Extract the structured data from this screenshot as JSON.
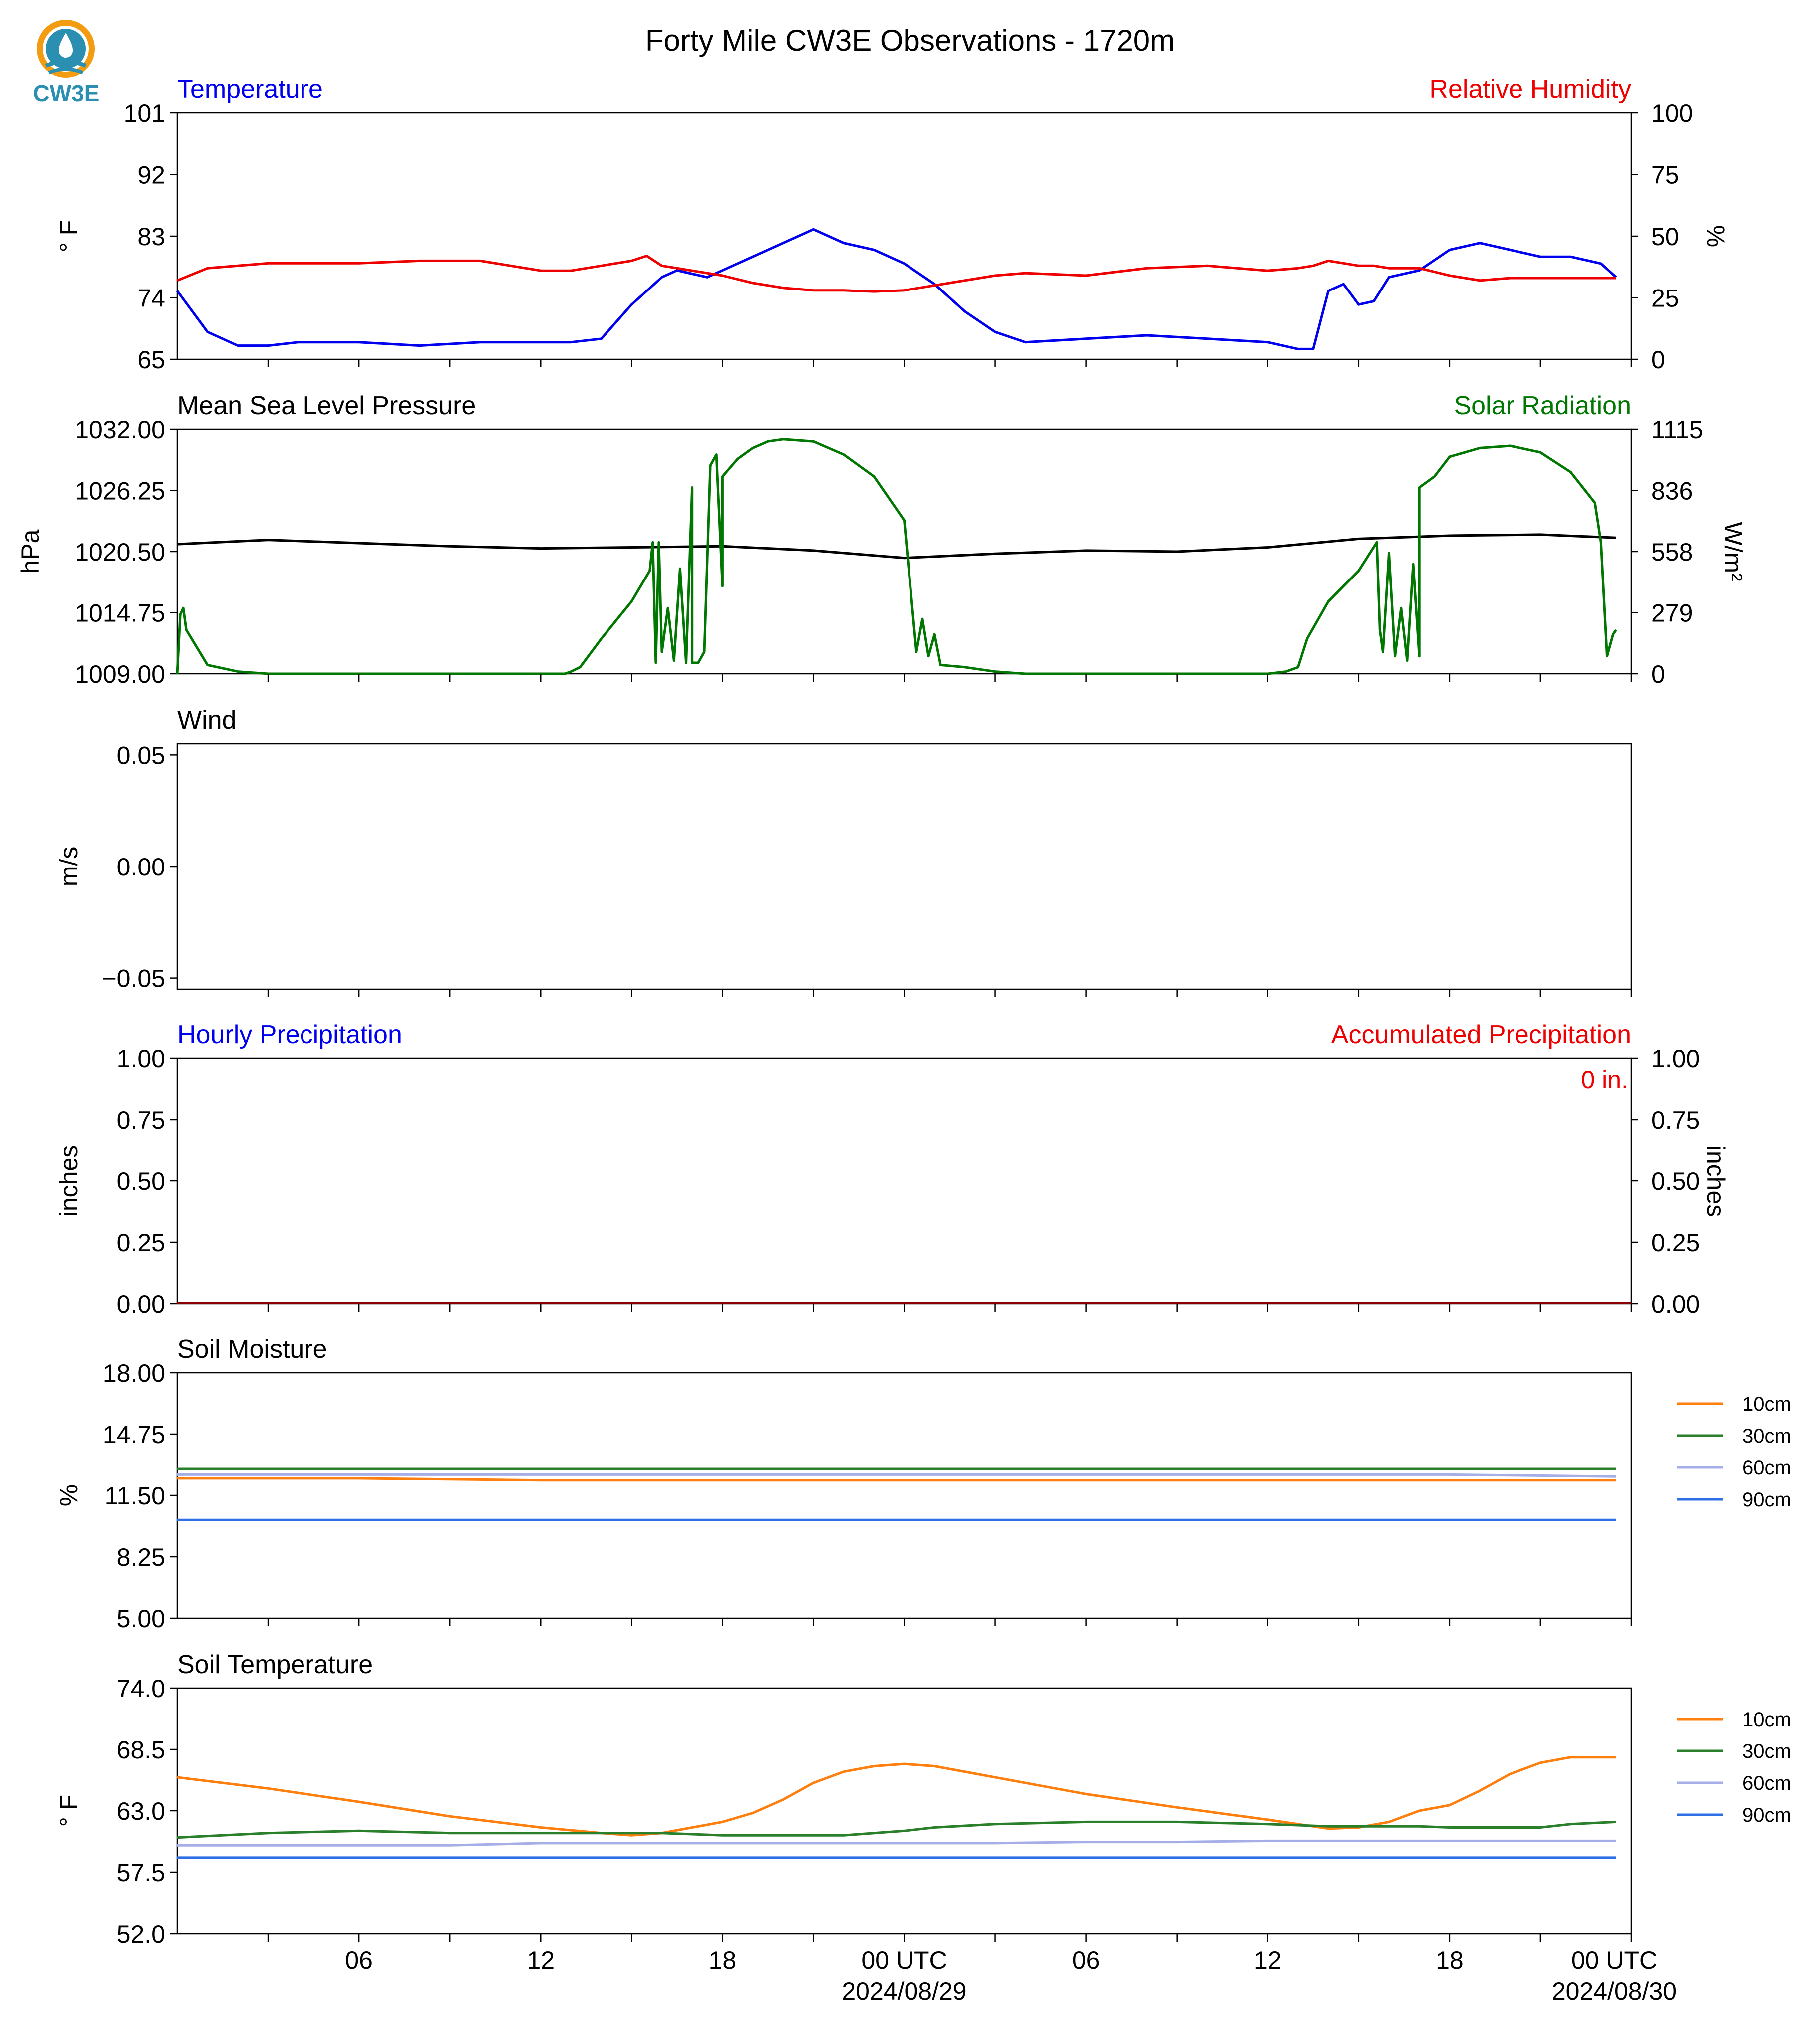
{
  "figure_title": "Forty Mile CW3E Observations - 1720m",
  "logo_text": "CW3E",
  "x_axis": {
    "tick_labels": [
      "06",
      "12",
      "18",
      "00 UTC",
      "06",
      "12",
      "18",
      "00 UTC"
    ],
    "date_labels": [
      "2024/08/29",
      "2024/08/30"
    ]
  },
  "colors": {
    "temperature": "#0000ee",
    "humidity": "#ee0000",
    "pressure": "#000000",
    "solar": "#007700",
    "soil10": "#ff7f0e",
    "soil30": "#2a7f2a",
    "soil60": "#a6aee8",
    "soil90": "#2f6fe6"
  },
  "chart_data": [
    {
      "type": "line",
      "title_left": "Temperature",
      "title_right": "Relative Humidity",
      "ylabel_left": "° F",
      "ylabel_right": "%",
      "ylim_left": [
        65,
        101
      ],
      "ylim_right": [
        0,
        100
      ],
      "yticks_left": [
        "101",
        "92",
        "83",
        "74",
        "65"
      ],
      "yticks_right": [
        "100",
        "75",
        "50",
        "25",
        "0"
      ],
      "x_hours": [
        0,
        1,
        2,
        3,
        4,
        6,
        8,
        10,
        12,
        13,
        14,
        15,
        15.5,
        16,
        16.5,
        17,
        17.5,
        18,
        19,
        20,
        21,
        22,
        23,
        24,
        25,
        26,
        27,
        28,
        30,
        32,
        34,
        36,
        37,
        37.5,
        38,
        38.5,
        39,
        39.5,
        40,
        41,
        42,
        43,
        44,
        45,
        46,
        47,
        47.5
      ],
      "series": [
        {
          "name": "Temperature",
          "axis": "left",
          "values": [
            75,
            69,
            67,
            67,
            67.5,
            67.5,
            67,
            67.5,
            67.5,
            67.5,
            68,
            73,
            75,
            77,
            78,
            77.5,
            77,
            78,
            80,
            82,
            84,
            82,
            81,
            79,
            76,
            72,
            69,
            67.5,
            68,
            68.5,
            68,
            67.5,
            66.5,
            66.5,
            75,
            76,
            73,
            73.5,
            77,
            78,
            81,
            82,
            81,
            80,
            80,
            79,
            77
          ]
        },
        {
          "name": "Relative Humidity",
          "axis": "right",
          "values": [
            32,
            37,
            38,
            39,
            39,
            39,
            40,
            40,
            36,
            36,
            38,
            40,
            42,
            38,
            37,
            36,
            35,
            34,
            31,
            29,
            28,
            28,
            27.5,
            28,
            30,
            32,
            34,
            35,
            34,
            37,
            38,
            36,
            37,
            38,
            40,
            39,
            38,
            38,
            37,
            37,
            34,
            32,
            33,
            33,
            33,
            33,
            33
          ]
        }
      ]
    },
    {
      "type": "line",
      "title_left": "Mean Sea Level Pressure",
      "title_right": "Solar Radiation",
      "ylabel_left": "hPa",
      "ylabel_right": "W/m²",
      "ylim_left": [
        1009,
        1032
      ],
      "ylim_right": [
        0,
        1115
      ],
      "yticks_left": [
        "1032.00",
        "1026.25",
        "1020.50",
        "1014.75",
        "1009.00"
      ],
      "yticks_right": [
        "1115",
        "836",
        "558",
        "279",
        "0"
      ],
      "series": [
        {
          "name": "Mean Sea Level Pressure",
          "axis": "left",
          "x_hours": [
            0,
            3,
            6,
            9,
            12,
            15,
            18,
            21,
            24,
            27,
            30,
            33,
            36,
            39,
            42,
            45,
            47.5
          ],
          "values": [
            1021.2,
            1021.6,
            1021.3,
            1021.0,
            1020.8,
            1020.9,
            1021.0,
            1020.6,
            1019.9,
            1020.3,
            1020.6,
            1020.5,
            1020.9,
            1021.7,
            1022.0,
            1022.1,
            1021.8
          ]
        },
        {
          "name": "Solar Radiation",
          "axis": "right",
          "x_hours": [
            0,
            0.1,
            0.2,
            0.3,
            1,
            2,
            3,
            6,
            9,
            12,
            12.8,
            13,
            13.3,
            14,
            15,
            15.6,
            15.7,
            15.8,
            15.9,
            16,
            16.2,
            16.4,
            16.6,
            16.8,
            17,
            17,
            17.2,
            17.4,
            17.6,
            17.8,
            18,
            18,
            18.5,
            19,
            19.5,
            20,
            21,
            22,
            23,
            24,
            24.2,
            24.4,
            24.6,
            24.8,
            25,
            25.2,
            26,
            27,
            28,
            30,
            33,
            36,
            36.6,
            37,
            37.3,
            38,
            39,
            39.6,
            39.7,
            39.8,
            40,
            40.2,
            40.4,
            40.6,
            40.8,
            41,
            41,
            41.5,
            42,
            43,
            44,
            45,
            46,
            46.8,
            47,
            47.2,
            47.4,
            47.5
          ],
          "values": [
            0,
            270,
            300,
            200,
            40,
            10,
            0,
            0,
            0,
            0,
            0,
            10,
            30,
            160,
            330,
            470,
            600,
            50,
            600,
            100,
            300,
            60,
            480,
            50,
            850,
            50,
            50,
            100,
            950,
            1000,
            400,
            900,
            980,
            1030,
            1060,
            1070,
            1060,
            1000,
            900,
            700,
            400,
            100,
            250,
            80,
            180,
            40,
            30,
            10,
            0,
            0,
            0,
            0,
            10,
            30,
            160,
            330,
            470,
            600,
            200,
            100,
            550,
            80,
            300,
            60,
            500,
            80,
            850,
            900,
            990,
            1030,
            1040,
            1010,
            920,
            780,
            600,
            80,
            180,
            200
          ]
        }
      ]
    },
    {
      "type": "line",
      "title_left": "Wind",
      "ylabel_left": "m/s",
      "ylim_left": [
        -0.055,
        0.055
      ],
      "yticks_left": [
        "0.05",
        "0.00",
        "−0.05"
      ],
      "series": []
    },
    {
      "type": "bar",
      "title_left": "Hourly Precipitation",
      "title_right": "Accumulated Precipitation",
      "ylabel_left": "inches",
      "ylabel_right": "inches",
      "ylim_left": [
        0,
        1
      ],
      "ylim_right": [
        0,
        1
      ],
      "yticks_left": [
        "1.00",
        "0.75",
        "0.50",
        "0.25",
        "0.00"
      ],
      "yticks_right": [
        "1.00",
        "0.75",
        "0.50",
        "0.25",
        "0.00"
      ],
      "annotation": "0 in.",
      "series": [
        {
          "name": "Hourly Precipitation",
          "values": [
            0
          ]
        },
        {
          "name": "Accumulated Precipitation",
          "values": [
            0
          ]
        }
      ]
    },
    {
      "type": "line",
      "title_left": "Soil Moisture",
      "ylabel_left": "%",
      "ylim_left": [
        5,
        18
      ],
      "yticks_left": [
        "18.00",
        "14.75",
        "11.50",
        "8.25",
        "5.00"
      ],
      "legend": [
        "10cm",
        "30cm",
        "60cm",
        "90cm"
      ],
      "x_hours": [
        0,
        6,
        12,
        18,
        24,
        30,
        36,
        42,
        47.5
      ],
      "series": [
        {
          "name": "10cm",
          "values": [
            12.4,
            12.4,
            12.3,
            12.3,
            12.3,
            12.3,
            12.3,
            12.3,
            12.3
          ]
        },
        {
          "name": "30cm",
          "values": [
            12.9,
            12.9,
            12.9,
            12.9,
            12.9,
            12.9,
            12.9,
            12.9,
            12.9
          ]
        },
        {
          "name": "60cm",
          "values": [
            12.6,
            12.6,
            12.6,
            12.6,
            12.6,
            12.6,
            12.6,
            12.6,
            12.5
          ]
        },
        {
          "name": "90cm",
          "values": [
            10.2,
            10.2,
            10.2,
            10.2,
            10.2,
            10.2,
            10.2,
            10.2,
            10.2
          ]
        }
      ]
    },
    {
      "type": "line",
      "title_left": "Soil Temperature",
      "ylabel_left": "° F",
      "ylim_left": [
        52,
        74
      ],
      "yticks_left": [
        "74.0",
        "68.5",
        "63.0",
        "57.5",
        "52.0"
      ],
      "legend": [
        "10cm",
        "30cm",
        "60cm",
        "90cm"
      ],
      "x_hours": [
        0,
        3,
        6,
        9,
        12,
        14,
        15,
        16,
        18,
        19,
        20,
        21,
        22,
        23,
        24,
        25,
        27,
        30,
        33,
        36,
        38,
        39,
        40,
        41,
        42,
        43,
        44,
        45,
        46,
        47.5
      ],
      "series": [
        {
          "name": "10cm",
          "values": [
            66,
            65,
            63.8,
            62.5,
            61.5,
            61,
            60.8,
            61,
            62,
            62.8,
            64,
            65.5,
            66.5,
            67,
            67.2,
            67,
            66,
            64.5,
            63.3,
            62.2,
            61.4,
            61.5,
            62,
            63,
            63.5,
            64.8,
            66.3,
            67.3,
            67.8,
            67.8
          ]
        },
        {
          "name": "30cm",
          "values": [
            60.6,
            61,
            61.2,
            61,
            61,
            61,
            61,
            61,
            60.8,
            60.8,
            60.8,
            60.8,
            60.8,
            61,
            61.2,
            61.5,
            61.8,
            62,
            62,
            61.8,
            61.6,
            61.6,
            61.6,
            61.6,
            61.5,
            61.5,
            61.5,
            61.5,
            61.8,
            62
          ]
        },
        {
          "name": "60cm",
          "values": [
            59.9,
            59.9,
            59.9,
            59.9,
            60.1,
            60.1,
            60.1,
            60.1,
            60.1,
            60.1,
            60.1,
            60.1,
            60.1,
            60.1,
            60.1,
            60.1,
            60.1,
            60.2,
            60.2,
            60.3,
            60.3,
            60.3,
            60.3,
            60.3,
            60.3,
            60.3,
            60.3,
            60.3,
            60.3,
            60.3
          ]
        },
        {
          "name": "90cm",
          "values": [
            58.8,
            58.8,
            58.8,
            58.8,
            58.8,
            58.8,
            58.8,
            58.8,
            58.8,
            58.8,
            58.8,
            58.8,
            58.8,
            58.8,
            58.8,
            58.8,
            58.8,
            58.8,
            58.8,
            58.8,
            58.8,
            58.8,
            58.8,
            58.8,
            58.8,
            58.8,
            58.8,
            58.8,
            58.8,
            58.8
          ]
        }
      ]
    }
  ]
}
